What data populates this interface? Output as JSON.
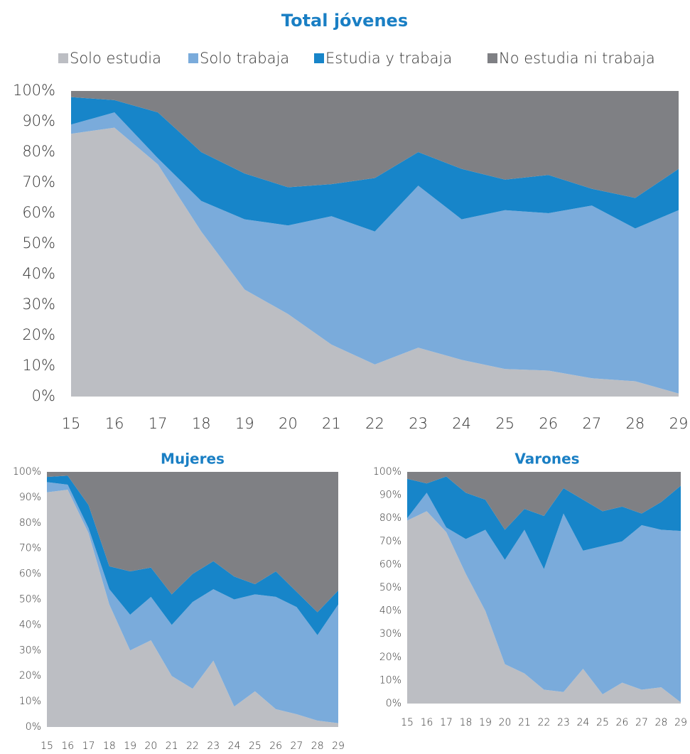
{
  "chart_data": [
    {
      "type": "stacked_area",
      "title": "Total jóvenes",
      "x": [
        15,
        16,
        17,
        18,
        19,
        20,
        21,
        22,
        23,
        24,
        25,
        26,
        27,
        28,
        29
      ],
      "xlim": [
        15,
        29
      ],
      "ylim": [
        0,
        100
      ],
      "yticks": [
        {
          "value": 0,
          "label": "0%"
        },
        {
          "value": 10,
          "label": "10%"
        },
        {
          "value": 20,
          "label": "20%"
        },
        {
          "value": 30,
          "label": "30%"
        },
        {
          "value": 40,
          "label": "40%"
        },
        {
          "value": 50,
          "label": "50%"
        },
        {
          "value": 60,
          "label": "60%"
        },
        {
          "value": 70,
          "label": "70%"
        },
        {
          "value": 80,
          "label": "80%"
        },
        {
          "value": 90,
          "label": "90%"
        },
        {
          "value": 100,
          "label": "100%"
        }
      ],
      "series": [
        {
          "name": "Solo estudia",
          "color": "#bcbec3",
          "values": [
            86,
            88,
            76,
            54,
            35,
            27,
            17,
            10.5,
            16,
            12,
            9,
            8.5,
            6,
            5,
            1
          ]
        },
        {
          "name": "Solo trabaja",
          "color": "#7aabdb",
          "values": [
            3,
            5,
            2,
            10,
            23,
            29,
            42,
            43.5,
            53,
            46,
            52,
            51.5,
            56.5,
            50,
            60
          ]
        },
        {
          "name": "Estudia y trabaja",
          "color": "#1785c9",
          "values": [
            9,
            4,
            15,
            16,
            15,
            12.5,
            10.5,
            17.5,
            11,
            16.5,
            10,
            12.5,
            5.5,
            10,
            13.5
          ]
        },
        {
          "name": "No estudia ni trabaja",
          "color": "#7f8084",
          "values": [
            2,
            3,
            7,
            20,
            27,
            31.5,
            30.5,
            28.5,
            20,
            25.5,
            29,
            27.5,
            32,
            35,
            25.5
          ]
        }
      ]
    },
    {
      "type": "stacked_area",
      "title": "Mujeres",
      "x": [
        15,
        16,
        17,
        18,
        19,
        20,
        21,
        22,
        23,
        24,
        25,
        26,
        27,
        28,
        29
      ],
      "xlim": [
        15,
        29
      ],
      "ylim": [
        0,
        100
      ],
      "yticks": [
        {
          "value": 0,
          "label": "0%"
        },
        {
          "value": 10,
          "label": "10%"
        },
        {
          "value": 20,
          "label": "20%"
        },
        {
          "value": 30,
          "label": "30%"
        },
        {
          "value": 40,
          "label": "40%"
        },
        {
          "value": 50,
          "label": "50%"
        },
        {
          "value": 60,
          "label": "60%"
        },
        {
          "value": 70,
          "label": "70%"
        },
        {
          "value": 80,
          "label": "80%"
        },
        {
          "value": 90,
          "label": "90%"
        },
        {
          "value": 100,
          "label": "100%"
        }
      ],
      "series": [
        {
          "values": [
            92,
            93,
            76,
            48,
            30,
            34,
            20,
            15,
            26,
            8,
            14,
            7,
            5,
            2.5,
            1.5
          ]
        },
        {
          "values": [
            4,
            2,
            2,
            6,
            14,
            17,
            20,
            34,
            28,
            42,
            38,
            44,
            42,
            33.5,
            46.5
          ]
        },
        {
          "values": [
            2,
            3.5,
            9,
            9,
            17,
            11.5,
            12,
            11,
            11,
            9,
            4,
            10,
            6,
            9,
            5.5
          ]
        },
        {
          "values": [
            2,
            1.5,
            13,
            37,
            39,
            37.5,
            48,
            40,
            35,
            41,
            44,
            39,
            47,
            55,
            46.5
          ]
        }
      ]
    },
    {
      "type": "stacked_area",
      "title": "Varones",
      "x": [
        15,
        16,
        17,
        18,
        19,
        20,
        21,
        22,
        23,
        24,
        25,
        26,
        27,
        28,
        29
      ],
      "xlim": [
        15,
        29
      ],
      "ylim": [
        0,
        100
      ],
      "yticks": [
        {
          "value": 0,
          "label": "0%"
        },
        {
          "value": 10,
          "label": "10%"
        },
        {
          "value": 20,
          "label": "20%"
        },
        {
          "value": 30,
          "label": "30%"
        },
        {
          "value": 40,
          "label": "40%"
        },
        {
          "value": 50,
          "label": "50%"
        },
        {
          "value": 60,
          "label": "60%"
        },
        {
          "value": 70,
          "label": "70%"
        },
        {
          "value": 80,
          "label": "80%"
        },
        {
          "value": 90,
          "label": "90%"
        },
        {
          "value": 100,
          "label": "100%"
        }
      ],
      "series": [
        {
          "values": [
            79,
            83,
            74,
            56,
            40,
            17,
            13,
            6,
            5,
            15,
            4,
            9,
            6,
            7,
            0.5
          ]
        },
        {
          "values": [
            1,
            8,
            2,
            15,
            35,
            45,
            62,
            52,
            77,
            51,
            64,
            61,
            71,
            68,
            74
          ]
        },
        {
          "values": [
            17,
            4,
            22,
            20,
            13,
            13,
            9,
            23,
            11,
            22,
            15,
            15,
            5,
            12,
            19.5
          ]
        },
        {
          "values": [
            3,
            5,
            2,
            9,
            12,
            25,
            16,
            19,
            7,
            12,
            17,
            15,
            18,
            13,
            6
          ]
        }
      ]
    }
  ]
}
